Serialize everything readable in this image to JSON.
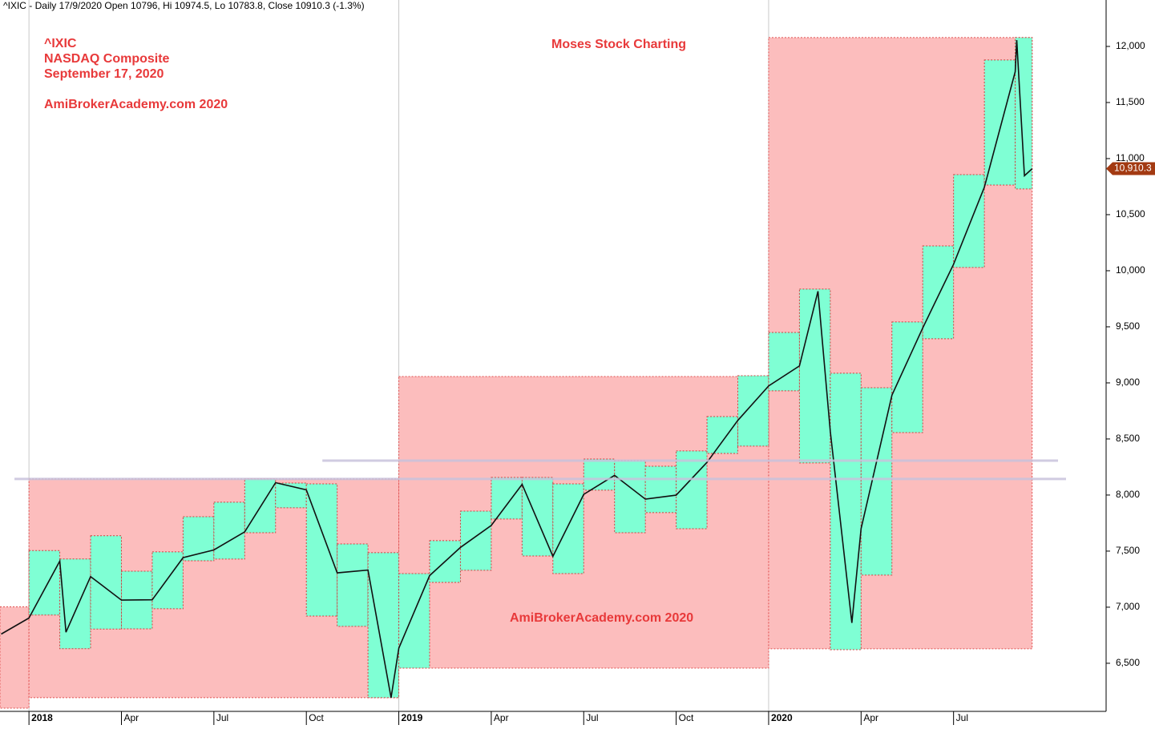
{
  "chart_data": {
    "type": "line",
    "title": "^IXIC - Daily 17/9/2020 Open 10796, Hi 10974.5, Lo 10783.8, Close 10910.3 (-1.3%)",
    "annotations": [
      "^IXIC",
      "NASDAQ Composite",
      "September 17, 2020",
      "AmiBrokerAcademy.com  2020",
      "Moses Stock Charting",
      "AmiBrokerAcademy.com  2020"
    ],
    "last_price": {
      "value": 10910.3,
      "label": "10,910.3"
    },
    "xlim": [
      -0.94,
      34.95
    ],
    "ylim": [
      6071,
      12414
    ],
    "xticks": [
      {
        "value": 0,
        "label": "2018"
      },
      {
        "value": 3,
        "label": "Apr"
      },
      {
        "value": 6,
        "label": "Jul"
      },
      {
        "value": 9,
        "label": "Oct"
      },
      {
        "value": 12,
        "label": "2019"
      },
      {
        "value": 15,
        "label": "Apr"
      },
      {
        "value": 18,
        "label": "Jul"
      },
      {
        "value": 21,
        "label": "Oct"
      },
      {
        "value": 24,
        "label": "2020"
      },
      {
        "value": 27,
        "label": "Apr"
      },
      {
        "value": 30,
        "label": "Jul"
      }
    ],
    "year_lines": [
      0,
      12,
      24
    ],
    "yticks": [
      {
        "value": 6500,
        "label": "6,500"
      },
      {
        "value": 7000,
        "label": "7,000"
      },
      {
        "value": 7500,
        "label": "7,500"
      },
      {
        "value": 8000,
        "label": "8,000"
      },
      {
        "value": 8500,
        "label": "8,500"
      },
      {
        "value": 9000,
        "label": "9,000"
      },
      {
        "value": 9500,
        "label": "9,500"
      },
      {
        "value": 10000,
        "label": "10,000"
      },
      {
        "value": 10500,
        "label": "10,500"
      },
      {
        "value": 11000,
        "label": "11,000"
      },
      {
        "value": 11500,
        "label": "11,500"
      },
      {
        "value": 12000,
        "label": "12,000"
      }
    ],
    "series": [
      {
        "name": "^IXIC",
        "color": "#111111",
        "x": [
          -0.9,
          0,
          1,
          1.2,
          2,
          3,
          4,
          5,
          6,
          7,
          8,
          9,
          10,
          11,
          11.75,
          12,
          13,
          14,
          15,
          16,
          17,
          18,
          19,
          20,
          21,
          22,
          23,
          24,
          25,
          25.6,
          26,
          26.7,
          27,
          28,
          29,
          30,
          31,
          32,
          32.05,
          32.3,
          32.55
        ],
        "values": [
          6760,
          6903,
          7411,
          6777,
          7273,
          7063,
          7066,
          7442,
          7510,
          7672,
          8110,
          8046,
          7306,
          7331,
          6193,
          6635,
          7282,
          7533,
          7729,
          8095,
          7453,
          8006,
          8175,
          7963,
          7999,
          8292,
          8665,
          8973,
          9151,
          9817,
          8567,
          6860,
          7700,
          8890,
          9490,
          10058,
          10745,
          11775,
          12056,
          10847,
          10910
        ]
      }
    ],
    "yearly_ranges": {
      "color": "#fcbdbd",
      "boxes": [
        {
          "start": -0.94,
          "end": 0,
          "high": 7003,
          "low": 6100
        },
        {
          "start": 0,
          "end": 12,
          "high": 8143,
          "low": 6193
        },
        {
          "start": 12,
          "end": 24,
          "high": 9057,
          "low": 6457
        },
        {
          "start": 24,
          "end": 32.55,
          "high": 12079,
          "low": 6629
        }
      ]
    },
    "monthly_ranges": {
      "color": "#7fffd4",
      "boxes": [
        {
          "start": 0,
          "end": 1,
          "high": 7505,
          "low": 6930
        },
        {
          "start": 1,
          "end": 2,
          "high": 7430,
          "low": 6630
        },
        {
          "start": 2,
          "end": 3,
          "high": 7637,
          "low": 6805
        },
        {
          "start": 3,
          "end": 4,
          "high": 7321,
          "low": 6807
        },
        {
          "start": 4,
          "end": 5,
          "high": 7493,
          "low": 6986
        },
        {
          "start": 5,
          "end": 6,
          "high": 7807,
          "low": 7414
        },
        {
          "start": 6,
          "end": 7,
          "high": 7936,
          "low": 7429
        },
        {
          "start": 7,
          "end": 8,
          "high": 8143,
          "low": 7664
        },
        {
          "start": 8,
          "end": 9,
          "high": 8107,
          "low": 7886
        },
        {
          "start": 9,
          "end": 10,
          "high": 8100,
          "low": 6921
        },
        {
          "start": 10,
          "end": 11,
          "high": 7564,
          "low": 6829
        },
        {
          "start": 11,
          "end": 12,
          "high": 7486,
          "low": 6193
        },
        {
          "start": 12,
          "end": 13,
          "high": 7300,
          "low": 6457
        },
        {
          "start": 13,
          "end": 14,
          "high": 7593,
          "low": 7221
        },
        {
          "start": 14,
          "end": 15,
          "high": 7857,
          "low": 7329
        },
        {
          "start": 15,
          "end": 16,
          "high": 8157,
          "low": 7786
        },
        {
          "start": 16,
          "end": 17,
          "high": 8157,
          "low": 7457
        },
        {
          "start": 17,
          "end": 18,
          "high": 8100,
          "low": 7300
        },
        {
          "start": 18,
          "end": 19,
          "high": 8321,
          "low": 8043
        },
        {
          "start": 19,
          "end": 20,
          "high": 8307,
          "low": 7664
        },
        {
          "start": 20,
          "end": 21,
          "high": 8257,
          "low": 7843
        },
        {
          "start": 21,
          "end": 22,
          "high": 8393,
          "low": 7700
        },
        {
          "start": 22,
          "end": 23,
          "high": 8700,
          "low": 8371
        },
        {
          "start": 23,
          "end": 24,
          "high": 9064,
          "low": 8436
        },
        {
          "start": 24,
          "end": 25,
          "high": 9450,
          "low": 8929
        },
        {
          "start": 25,
          "end": 26,
          "high": 9836,
          "low": 8286
        },
        {
          "start": 26,
          "end": 27,
          "high": 9086,
          "low": 6621
        },
        {
          "start": 27,
          "end": 28,
          "high": 8957,
          "low": 7286
        },
        {
          "start": 28,
          "end": 29,
          "high": 9543,
          "low": 8557
        },
        {
          "start": 29,
          "end": 30,
          "high": 10221,
          "low": 9393
        },
        {
          "start": 30,
          "end": 31,
          "high": 10857,
          "low": 10029
        },
        {
          "start": 31,
          "end": 32,
          "high": 11879,
          "low": 10764
        },
        {
          "start": 32,
          "end": 32.55,
          "high": 12079,
          "low": 10729
        }
      ]
    },
    "hlines": [
      {
        "value": 8307,
        "start": 9.52,
        "end": 33.39,
        "color": "#c8c2dc"
      },
      {
        "value": 8143,
        "start": -0.47,
        "end": 33.65,
        "color": "#c8c2dc"
      }
    ]
  }
}
